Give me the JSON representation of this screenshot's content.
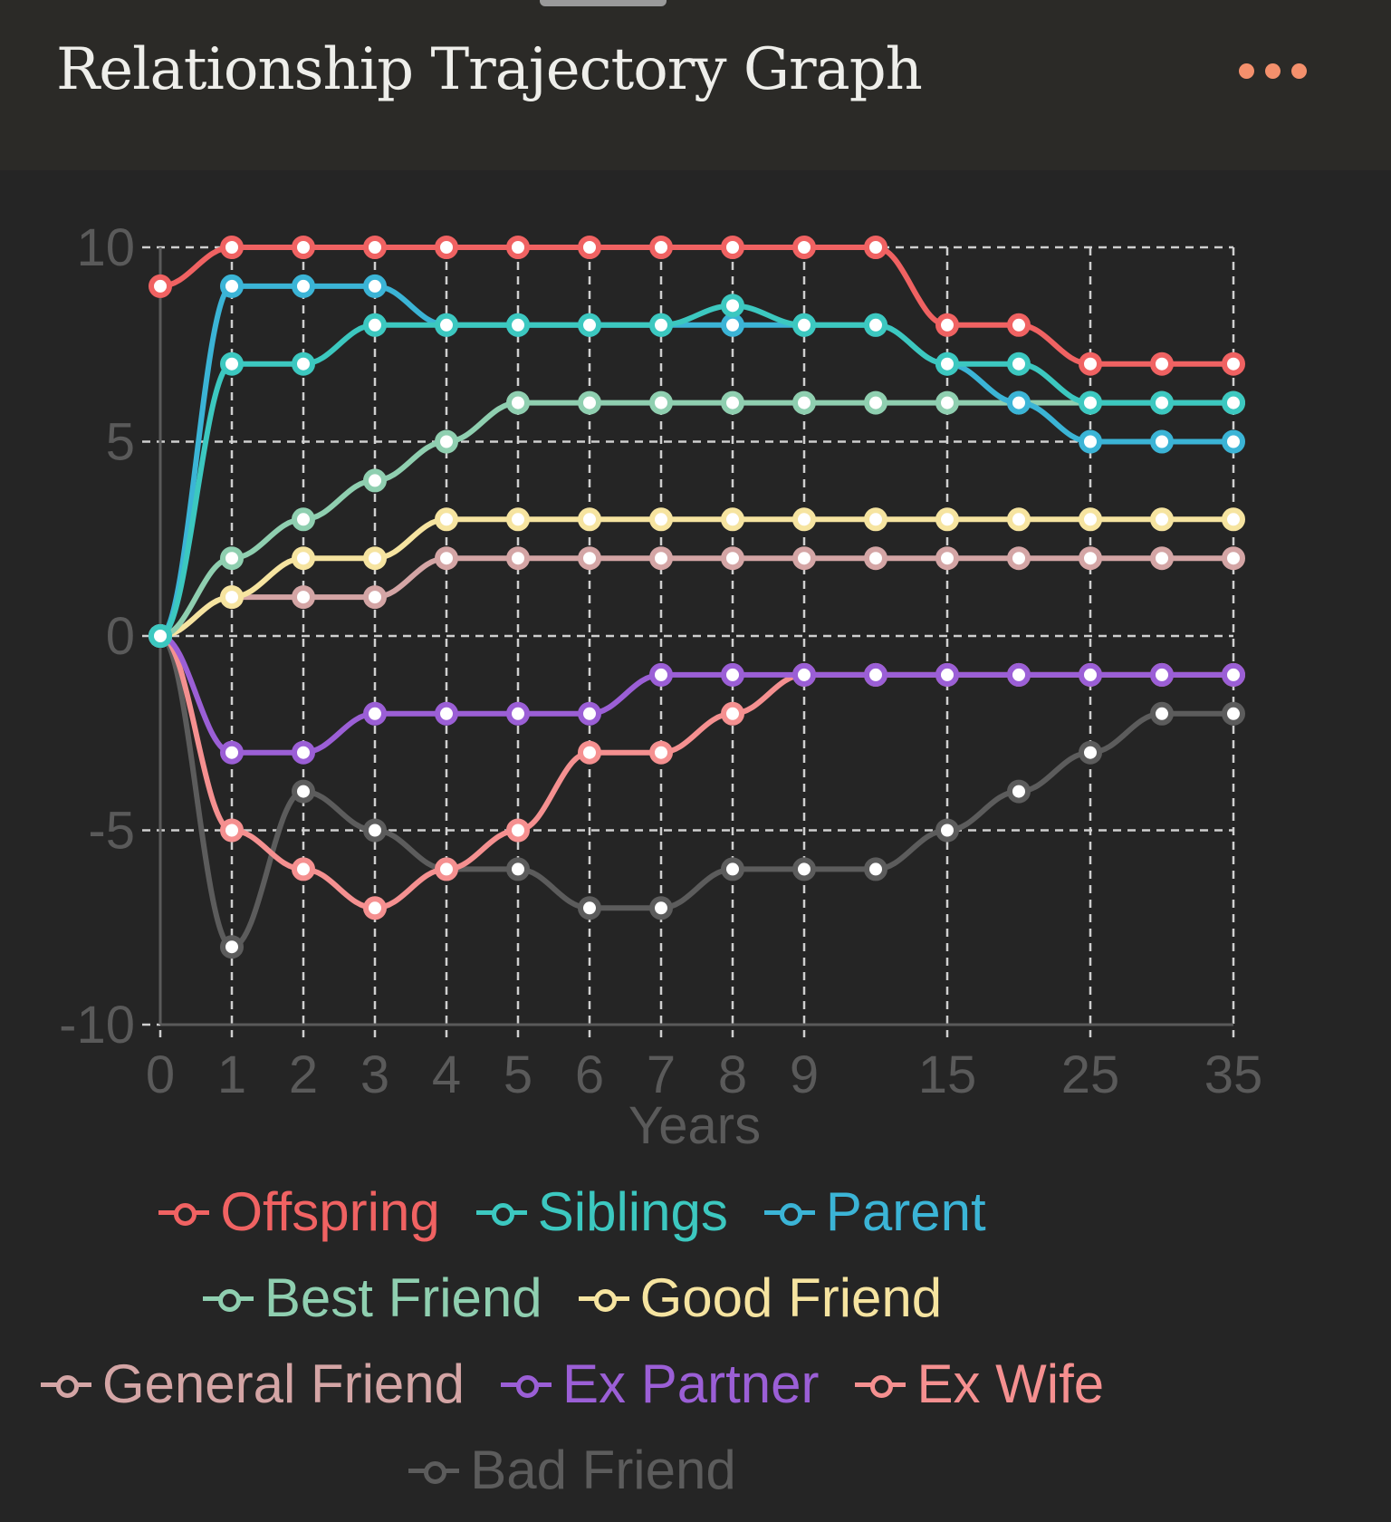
{
  "header": {
    "title": "Relationship Trajectory Graph",
    "more_icon": "ellipsis-icon",
    "accent": "#f4906c"
  },
  "chart_data": {
    "type": "line",
    "title": "Relationship Trajectory Graph",
    "xlabel": "Years",
    "ylabel": "",
    "x": [
      0,
      1,
      2,
      3,
      4,
      5,
      6,
      7,
      8,
      9,
      10,
      15,
      20,
      25,
      30,
      35
    ],
    "x_tick_labels_shown": [
      "0",
      "1",
      "2",
      "3",
      "4",
      "5",
      "6",
      "7",
      "8",
      "9",
      "15",
      "25",
      "35"
    ],
    "y_ticks": [
      "10",
      "5",
      "0",
      "-5",
      "-10"
    ],
    "ylim": [
      -10,
      10
    ],
    "grid": true,
    "legend_position": "bottom",
    "series": [
      {
        "name": "Offspring",
        "color": "#f06262",
        "values": [
          9,
          10,
          10,
          10,
          10,
          10,
          10,
          10,
          10,
          10,
          10,
          8,
          8,
          7,
          7,
          7
        ]
      },
      {
        "name": "Siblings",
        "color": "#3cc8c0",
        "values": [
          0,
          7,
          7,
          8,
          8,
          8,
          8,
          8,
          8.5,
          8,
          8,
          7,
          7,
          6,
          6,
          6
        ]
      },
      {
        "name": "Parent",
        "color": "#3bb4d6",
        "values": [
          0,
          9,
          9,
          9,
          8,
          8,
          8,
          8,
          8,
          8,
          8,
          7,
          6,
          5,
          5,
          5
        ]
      },
      {
        "name": "Best Friend",
        "color": "#8fcfb0",
        "values": [
          0,
          2,
          3,
          4,
          5,
          6,
          6,
          6,
          6,
          6,
          6,
          6,
          6,
          6,
          6,
          6
        ]
      },
      {
        "name": "Good Friend",
        "color": "#f6e4a0",
        "values": [
          0,
          1,
          2,
          2,
          3,
          3,
          3,
          3,
          3,
          3,
          3,
          3,
          3,
          3,
          3,
          3
        ]
      },
      {
        "name": "General Friend",
        "color": "#d4a5a5",
        "values": [
          0,
          1,
          1,
          1,
          2,
          2,
          2,
          2,
          2,
          2,
          2,
          2,
          2,
          2,
          2,
          2
        ]
      },
      {
        "name": "Ex Partner",
        "color": "#9b5fd6",
        "values": [
          0,
          -3,
          -3,
          -2,
          -2,
          -2,
          -2,
          -1,
          -1,
          -1,
          -1,
          -1,
          -1,
          -1,
          -1,
          -1
        ]
      },
      {
        "name": "Ex Wife",
        "color": "#f59090",
        "values": [
          0,
          -5,
          -6,
          -7,
          -6,
          -5,
          -3,
          -3,
          -2,
          -1,
          -1,
          -1,
          -1,
          -1,
          -1,
          -1
        ]
      },
      {
        "name": "Bad Friend",
        "color": "#5c5c5c",
        "values": [
          0,
          -8,
          -4,
          -5,
          -6,
          -6,
          -7,
          -7,
          -6,
          -6,
          -6,
          -5,
          -4,
          -3,
          -2,
          -2
        ]
      }
    ]
  }
}
